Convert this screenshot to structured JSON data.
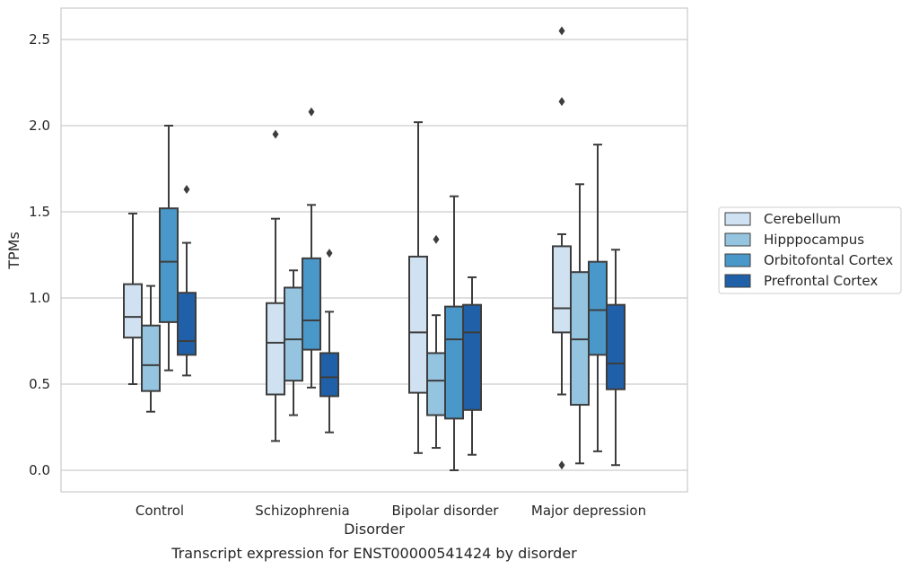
{
  "chart_data": {
    "type": "box",
    "xlabel": "Disorder",
    "ylabel": "TPMs",
    "caption": "Transcript expression for ENST00000541424 by disorder",
    "ylim": [
      -0.12,
      2.68
    ],
    "yticks": [
      0.0,
      0.5,
      1.0,
      1.5,
      2.0,
      2.5
    ],
    "ytick_labels": [
      "0.0",
      "0.5",
      "1.0",
      "1.5",
      "2.0",
      "2.5"
    ],
    "grid": "horizontal",
    "legend_position": "right",
    "categories": [
      "Control",
      "Schizophrenia",
      "Bipolar disorder",
      "Major depression"
    ],
    "colors": {
      "background": "#ffffff",
      "grid": "#cccccc",
      "box_edge": "#3d3d3d",
      "axes_frame": "#cccccc"
    },
    "series": [
      {
        "name": "Cerebellum",
        "color": "#d0e1f2",
        "boxes": [
          {
            "whisker_low": 0.5,
            "q1": 0.77,
            "median": 0.89,
            "q3": 1.08,
            "whisker_high": 1.49,
            "outliers": []
          },
          {
            "whisker_low": 0.17,
            "q1": 0.44,
            "median": 0.74,
            "q3": 0.97,
            "whisker_high": 1.46,
            "outliers": [
              1.95
            ]
          },
          {
            "whisker_low": 0.1,
            "q1": 0.45,
            "median": 0.8,
            "q3": 1.24,
            "whisker_high": 2.02,
            "outliers": []
          },
          {
            "whisker_low": 0.44,
            "q1": 0.8,
            "median": 0.94,
            "q3": 1.3,
            "whisker_high": 1.37,
            "outliers": [
              2.55,
              2.14,
              0.03
            ]
          }
        ]
      },
      {
        "name": "Hipppocampus",
        "color": "#94c4df",
        "boxes": [
          {
            "whisker_low": 0.34,
            "q1": 0.46,
            "median": 0.61,
            "q3": 0.84,
            "whisker_high": 1.07,
            "outliers": []
          },
          {
            "whisker_low": 0.32,
            "q1": 0.52,
            "median": 0.76,
            "q3": 1.06,
            "whisker_high": 1.16,
            "outliers": []
          },
          {
            "whisker_low": 0.13,
            "q1": 0.32,
            "median": 0.52,
            "q3": 0.68,
            "whisker_high": 0.9,
            "outliers": [
              1.34
            ]
          },
          {
            "whisker_low": 0.04,
            "q1": 0.38,
            "median": 0.76,
            "q3": 1.15,
            "whisker_high": 1.66,
            "outliers": []
          }
        ]
      },
      {
        "name": "Orbitofontal Cortex",
        "color": "#4a98c9",
        "boxes": [
          {
            "whisker_low": 0.58,
            "q1": 0.86,
            "median": 1.21,
            "q3": 1.52,
            "whisker_high": 2.0,
            "outliers": []
          },
          {
            "whisker_low": 0.48,
            "q1": 0.7,
            "median": 0.87,
            "q3": 1.23,
            "whisker_high": 1.54,
            "outliers": [
              2.08
            ]
          },
          {
            "whisker_low": 0.0,
            "q1": 0.3,
            "median": 0.76,
            "q3": 0.95,
            "whisker_high": 1.59,
            "outliers": []
          },
          {
            "whisker_low": 0.11,
            "q1": 0.67,
            "median": 0.93,
            "q3": 1.21,
            "whisker_high": 1.89,
            "outliers": []
          }
        ]
      },
      {
        "name": "Prefrontal Cortex",
        "color": "#2060a8",
        "boxes": [
          {
            "whisker_low": 0.55,
            "q1": 0.67,
            "median": 0.75,
            "q3": 1.03,
            "whisker_high": 1.32,
            "outliers": [
              1.63
            ]
          },
          {
            "whisker_low": 0.22,
            "q1": 0.43,
            "median": 0.54,
            "q3": 0.68,
            "whisker_high": 0.92,
            "outliers": [
              1.26
            ]
          },
          {
            "whisker_low": 0.09,
            "q1": 0.35,
            "median": 0.8,
            "q3": 0.96,
            "whisker_high": 1.12,
            "outliers": []
          },
          {
            "whisker_low": 0.03,
            "q1": 0.47,
            "median": 0.62,
            "q3": 0.96,
            "whisker_high": 1.28,
            "outliers": []
          }
        ]
      }
    ]
  }
}
